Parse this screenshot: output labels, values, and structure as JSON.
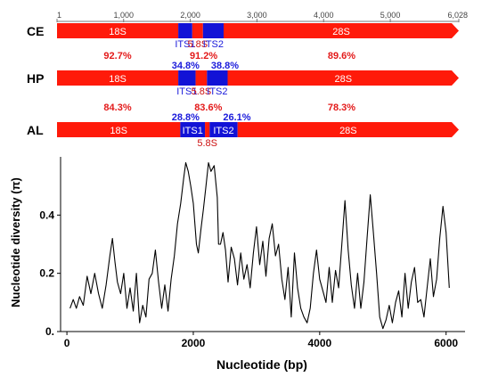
{
  "chart_data": [
    {
      "type": "bar",
      "ruler": {
        "ticks": [
          1,
          1000,
          2000,
          3000,
          4000,
          5000,
          6028
        ],
        "tick_labels": [
          "1",
          "1,000",
          "2,000",
          "3,000",
          "4,000",
          "5,000",
          "6,028"
        ]
      },
      "rows": [
        {
          "label": "CE",
          "segments": [
            {
              "name": "18S",
              "start": 1,
              "end": 1820,
              "color": "#ff1a0a"
            },
            {
              "name": "ITS1",
              "start": 1820,
              "end": 2030,
              "color": "#1212d6"
            },
            {
              "name": "5.8S",
              "start": 2030,
              "end": 2190,
              "color": "#ff1a0a"
            },
            {
              "name": "ITS2",
              "start": 2190,
              "end": 2500,
              "color": "#1212d6"
            },
            {
              "name": "28S",
              "start": 2500,
              "end": 6028,
              "color": "#ff1a0a"
            }
          ],
          "identities": []
        },
        {
          "label": "HP",
          "segments": [
            {
              "name": "18S",
              "start": 1,
              "end": 1820,
              "color": "#ff1a0a"
            },
            {
              "name": "ITS1",
              "start": 1820,
              "end": 2080,
              "color": "#1212d6"
            },
            {
              "name": "5.8S",
              "start": 2080,
              "end": 2250,
              "color": "#ff1a0a"
            },
            {
              "name": "ITS2",
              "start": 2250,
              "end": 2560,
              "color": "#1212d6"
            },
            {
              "name": "28S",
              "start": 2560,
              "end": 6028,
              "color": "#ff1a0a"
            }
          ],
          "identities": [
            {
              "text": "92.7%",
              "color": "#e31a1a",
              "pos": 910
            },
            {
              "text": "91.2%",
              "color": "#e31a1a",
              "pos": 2200
            },
            {
              "text": "89.6%",
              "color": "#e31a1a",
              "pos": 4270
            },
            {
              "text": "34.8%",
              "color": "#1a1adb",
              "pos": 1930
            },
            {
              "text": "38.8%",
              "color": "#1a1adb",
              "pos": 2520
            }
          ]
        },
        {
          "label": "AL",
          "segments": [
            {
              "name": "18S",
              "start": 1,
              "end": 1850,
              "color": "#ff1a0a"
            },
            {
              "name": "ITS1",
              "start": 1850,
              "end": 2220,
              "color": "#1212d6"
            },
            {
              "name": "5.8S",
              "start": 2220,
              "end": 2290,
              "color": "#ff1a0a"
            },
            {
              "name": "ITS2",
              "start": 2290,
              "end": 2710,
              "color": "#1212d6"
            },
            {
              "name": "28S",
              "start": 2710,
              "end": 6028,
              "color": "#ff1a0a"
            }
          ],
          "identities": [
            {
              "text": "84.3%",
              "color": "#e31a1a",
              "pos": 910
            },
            {
              "text": "83.6%",
              "color": "#e31a1a",
              "pos": 2270
            },
            {
              "text": "78.3%",
              "color": "#e31a1a",
              "pos": 4270
            },
            {
              "text": "28.8%",
              "color": "#1a1adb",
              "pos": 1930
            },
            {
              "text": "26.1%",
              "color": "#1a1adb",
              "pos": 2700
            }
          ]
        }
      ]
    },
    {
      "type": "line",
      "xlabel": "Nucleotide (bp)",
      "ylabel": "Nucleotide diversity (π)",
      "xlim": [
        -100,
        6300
      ],
      "ylim": [
        0,
        0.6
      ],
      "xticks": [
        0,
        2000,
        4000,
        6000
      ],
      "xtick_labels": [
        "0",
        "2000",
        "4000",
        "6000"
      ],
      "yticks": [
        0,
        0.2,
        0.4
      ],
      "ytick_labels": [
        "0.",
        "0.2",
        "0.4"
      ],
      "grid": false,
      "series": [
        {
          "color": "#000000",
          "x": [
            50,
            100,
            150,
            200,
            260,
            320,
            380,
            440,
            500,
            560,
            620,
            680,
            720,
            760,
            800,
            850,
            900,
            950,
            1000,
            1050,
            1100,
            1150,
            1200,
            1250,
            1300,
            1350,
            1400,
            1450,
            1500,
            1550,
            1600,
            1650,
            1700,
            1750,
            1800,
            1850,
            1880,
            1920,
            1960,
            2000,
            2050,
            2080,
            2120,
            2160,
            2200,
            2240,
            2280,
            2330,
            2380,
            2400,
            2430,
            2470,
            2510,
            2550,
            2600,
            2650,
            2700,
            2750,
            2800,
            2850,
            2900,
            2950,
            3000,
            3050,
            3100,
            3150,
            3200,
            3250,
            3300,
            3350,
            3400,
            3450,
            3500,
            3550,
            3600,
            3650,
            3700,
            3750,
            3800,
            3850,
            3900,
            3950,
            4000,
            4050,
            4100,
            4150,
            4200,
            4250,
            4300,
            4350,
            4400,
            4450,
            4500,
            4550,
            4600,
            4650,
            4700,
            4750,
            4800,
            4850,
            4900,
            4950,
            5000,
            5050,
            5100,
            5150,
            5200,
            5250,
            5300,
            5350,
            5400,
            5450,
            5500,
            5550,
            5600,
            5650,
            5700,
            5750,
            5800,
            5850,
            5900,
            5950,
            6000,
            6050
          ],
          "y": [
            0.08,
            0.11,
            0.08,
            0.12,
            0.09,
            0.19,
            0.13,
            0.2,
            0.13,
            0.08,
            0.16,
            0.26,
            0.32,
            0.24,
            0.17,
            0.13,
            0.2,
            0.08,
            0.15,
            0.07,
            0.2,
            0.03,
            0.09,
            0.05,
            0.18,
            0.2,
            0.28,
            0.17,
            0.08,
            0.16,
            0.07,
            0.18,
            0.26,
            0.37,
            0.44,
            0.53,
            0.58,
            0.55,
            0.5,
            0.44,
            0.3,
            0.27,
            0.35,
            0.42,
            0.5,
            0.58,
            0.55,
            0.57,
            0.46,
            0.3,
            0.3,
            0.34,
            0.28,
            0.17,
            0.29,
            0.25,
            0.16,
            0.27,
            0.18,
            0.23,
            0.15,
            0.27,
            0.36,
            0.23,
            0.31,
            0.19,
            0.32,
            0.37,
            0.26,
            0.3,
            0.18,
            0.11,
            0.22,
            0.05,
            0.27,
            0.15,
            0.08,
            0.05,
            0.03,
            0.08,
            0.2,
            0.28,
            0.18,
            0.14,
            0.1,
            0.22,
            0.1,
            0.21,
            0.15,
            0.3,
            0.45,
            0.28,
            0.16,
            0.08,
            0.2,
            0.08,
            0.17,
            0.32,
            0.47,
            0.34,
            0.2,
            0.05,
            0.01,
            0.04,
            0.09,
            0.03,
            0.1,
            0.14,
            0.05,
            0.2,
            0.08,
            0.17,
            0.22,
            0.1,
            0.11,
            0.05,
            0.15,
            0.25,
            0.12,
            0.18,
            0.32,
            0.43,
            0.34,
            0.15
          ]
        }
      ]
    }
  ]
}
